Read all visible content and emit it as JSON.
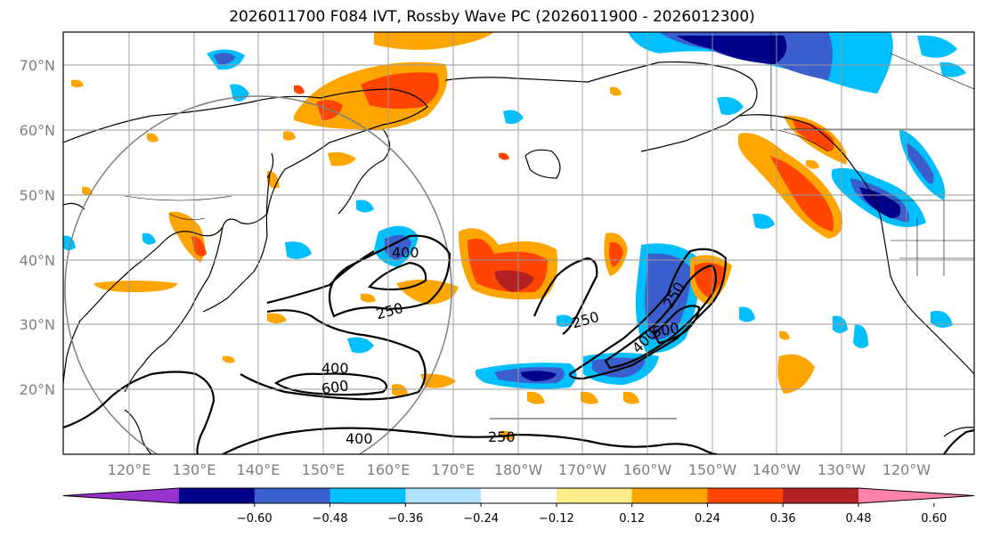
{
  "title": "2026011700 F084 IVT, Rossby Wave PC (2026011900 - 2026012300)",
  "lat_labels": [
    "70°N",
    "60°N",
    "50°N",
    "40°N",
    "30°N",
    "20°N"
  ],
  "lon_labels": [
    "120°E",
    "130°E",
    "140°E",
    "150°E",
    "160°E",
    "170°E",
    "180°W",
    "170°W",
    "160°W",
    "150°W",
    "140°W",
    "130°W",
    "120°W"
  ],
  "contour_labels": [
    "400",
    "250",
    "400",
    "600",
    "400",
    "250",
    "250",
    "400",
    "600",
    "250"
  ],
  "colorbar": {
    "ticks": [
      "−0.60",
      "−0.48",
      "−0.36",
      "−0.24",
      "−0.12",
      "0.12",
      "0.24",
      "0.36",
      "0.48",
      "0.60"
    ],
    "colors": [
      "#9932cc",
      "#00008b",
      "#3a5fcd",
      "#00bfff",
      "#b0e2ff",
      "#ffffff",
      "#ffec8b",
      "#ffa500",
      "#ff4500",
      "#b22222",
      "#ff82ab"
    ]
  }
}
